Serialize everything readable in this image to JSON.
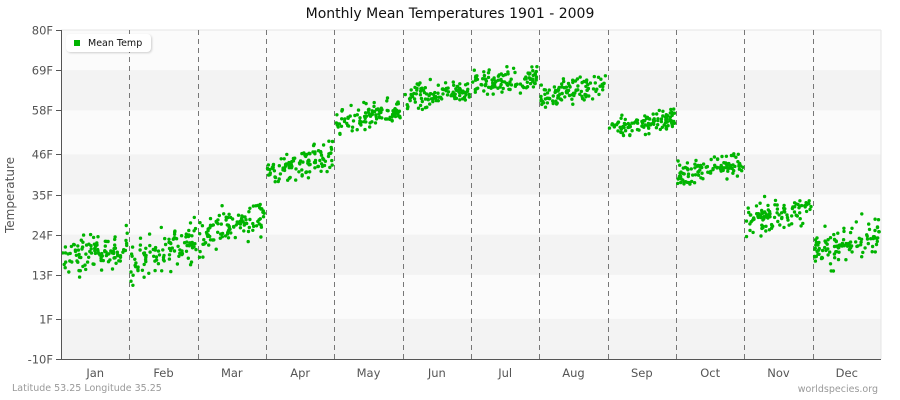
{
  "title": "Monthly Mean Temperatures 1901 - 2009",
  "footer": {
    "location": "Latitude 53.25 Longitude 35.25",
    "source": "worldspecies.org"
  },
  "legend": {
    "label": "Mean Temp",
    "color": "#00b400"
  },
  "chart_data": {
    "type": "scatter",
    "title": "Monthly Mean Temperatures 1901 - 2009",
    "xlabel": "",
    "ylabel": "Temperature",
    "ylim": [
      -10,
      80
    ],
    "yticks": [
      "80F",
      "69F",
      "58F",
      "46F",
      "35F",
      "24F",
      "13F",
      "1F",
      "-10F"
    ],
    "ytick_values": [
      80,
      69,
      58,
      46,
      35,
      24,
      13,
      1,
      -10
    ],
    "categories": [
      "Jan",
      "Feb",
      "Mar",
      "Apr",
      "May",
      "Jun",
      "Jul",
      "Aug",
      "Sep",
      "Oct",
      "Nov",
      "Dec"
    ],
    "legend_position": "top-left",
    "grid": {
      "horizontal_bands": true,
      "vertical_dashed_month_dividers": true
    },
    "series": [
      {
        "name": "Mean Temp",
        "color": "#00b400",
        "points_per_month": 109,
        "monthly_summary": [
          {
            "month": "Jan",
            "mean": 18,
            "min": 4,
            "max": 27,
            "trend_start": 17,
            "trend_end": 21
          },
          {
            "month": "Feb",
            "mean": 19,
            "min": 4,
            "max": 31,
            "trend_start": 16,
            "trend_end": 23
          },
          {
            "month": "Mar",
            "mean": 26,
            "min": 12,
            "max": 35,
            "trend_start": 23,
            "trend_end": 30
          },
          {
            "month": "Apr",
            "mean": 43,
            "min": 32,
            "max": 52,
            "trend_start": 41,
            "trend_end": 46
          },
          {
            "month": "May",
            "mean": 56,
            "min": 47,
            "max": 64,
            "trend_start": 54,
            "trend_end": 58
          },
          {
            "month": "Jun",
            "mean": 62,
            "min": 54,
            "max": 70,
            "trend_start": 61,
            "trend_end": 64
          },
          {
            "month": "Jul",
            "mean": 66,
            "min": 59,
            "max": 74,
            "trend_start": 65,
            "trend_end": 67
          },
          {
            "month": "Aug",
            "mean": 64,
            "min": 57,
            "max": 72,
            "trend_start": 62,
            "trend_end": 65
          },
          {
            "month": "Sep",
            "mean": 54,
            "min": 46,
            "max": 61,
            "trend_start": 53,
            "trend_end": 56
          },
          {
            "month": "Oct",
            "mean": 42,
            "min": 33,
            "max": 50,
            "trend_start": 40,
            "trend_end": 44
          },
          {
            "month": "Nov",
            "mean": 30,
            "min": 20,
            "max": 38,
            "trend_start": 28,
            "trend_end": 31
          },
          {
            "month": "Dec",
            "mean": 21,
            "min": 9,
            "max": 33,
            "trend_start": 19,
            "trend_end": 24
          }
        ]
      }
    ]
  }
}
